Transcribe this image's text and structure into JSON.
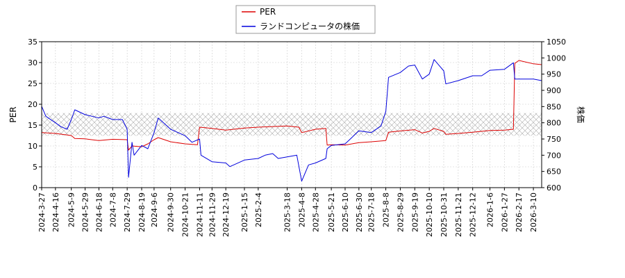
{
  "chart_data": {
    "type": "line",
    "title": "",
    "ylabel_left": "PER",
    "ylabel_right": "株価",
    "ylim_left": [
      0,
      35
    ],
    "ylim_right": [
      600,
      1050
    ],
    "yticks_left": [
      "0",
      "5",
      "10",
      "15",
      "20",
      "25",
      "30",
      "35"
    ],
    "yticks_right": [
      "600",
      "650",
      "700",
      "750",
      "800",
      "850",
      "900",
      "950",
      "1000",
      "1050"
    ],
    "x_range": [
      "2024-3-27",
      "2026-3-22"
    ],
    "xtick_labels": [
      "2024-3-27",
      "2024-4-16",
      "2024-5-9",
      "2024-5-29",
      "2024-6-18",
      "2024-7-8",
      "2024-7-29",
      "2024-8-19",
      "2024-9-6",
      "2024-9-30",
      "2024-10-21",
      "2024-11-11",
      "2024-11-29",
      "2024-12-19",
      "2025-1-15",
      "2025-2-4",
      "2025-3-18",
      "2025-4-8",
      "2025-4-28",
      "2025-5-21",
      "2025-6-10",
      "2025-6-30",
      "2025-7-18",
      "2025-8-8",
      "2025-8-29",
      "2025-9-19",
      "2025-10-10",
      "2025-10-31",
      "2025-11-21",
      "2025-12-12",
      "2026-1-6",
      "2026-1-27",
      "2026-2-17",
      "2026-3-10"
    ],
    "grid": true,
    "legend_position": "top-center",
    "hatched_band_right_axis": [
      760,
      830
    ],
    "series": [
      {
        "name": "PER",
        "axis": "left",
        "color": "#dd0000",
        "points": [
          [
            "2024-3-27",
            13.2
          ],
          [
            "2024-4-16",
            13
          ],
          [
            "2024-5-9",
            12.5
          ],
          [
            "2024-5-14",
            11.8
          ],
          [
            "2024-5-29",
            11.7
          ],
          [
            "2024-6-18",
            11.3
          ],
          [
            "2024-7-8",
            11.6
          ],
          [
            "2024-7-29",
            11.5
          ],
          [
            "2024-7-31",
            9.0
          ],
          [
            "2024-8-5",
            10.0
          ],
          [
            "2024-8-19",
            9.8
          ],
          [
            "2024-8-28",
            10.5
          ],
          [
            "2024-9-6",
            11.5
          ],
          [
            "2024-9-12",
            12
          ],
          [
            "2024-9-30",
            11.0
          ],
          [
            "2024-10-21",
            10.5
          ],
          [
            "2024-11-8",
            10.3
          ],
          [
            "2024-11-11",
            14.5
          ],
          [
            "2024-11-29",
            14.2
          ],
          [
            "2024-12-19",
            13.8
          ],
          [
            "2025-1-15",
            14.3
          ],
          [
            "2025-2-4",
            14.5
          ],
          [
            "2025-3-18",
            14.8
          ],
          [
            "2025-4-4",
            14.5
          ],
          [
            "2025-4-8",
            13.2
          ],
          [
            "2025-4-28",
            14.0
          ],
          [
            "2025-5-13",
            14.2
          ],
          [
            "2025-5-15",
            10.2
          ],
          [
            "2025-5-21",
            10.3
          ],
          [
            "2025-6-10",
            10.2
          ],
          [
            "2025-6-30",
            10.8
          ],
          [
            "2025-7-18",
            11.0
          ],
          [
            "2025-8-8",
            11.3
          ],
          [
            "2025-8-12",
            13.3
          ],
          [
            "2025-8-29",
            13.6
          ],
          [
            "2025-9-19",
            13.9
          ],
          [
            "2025-9-30",
            13.1
          ],
          [
            "2025-10-10",
            13.5
          ],
          [
            "2025-10-17",
            14.2
          ],
          [
            "2025-10-31",
            13.5
          ],
          [
            "2025-11-3",
            12.8
          ],
          [
            "2025-11-21",
            13.0
          ],
          [
            "2025-12-12",
            13.3
          ],
          [
            "2026-1-6",
            13.7
          ],
          [
            "2026-1-27",
            13.8
          ],
          [
            "2026-2-9",
            14.0
          ],
          [
            "2026-2-11",
            29.8
          ],
          [
            "2026-2-17",
            30.5
          ],
          [
            "2026-3-10",
            29.7
          ],
          [
            "2026-3-22",
            29.5
          ]
        ]
      },
      {
        "name": "ランドコンピュータの株価",
        "axis": "right",
        "color": "#0000dd",
        "points": [
          [
            "2024-3-27",
            851
          ],
          [
            "2024-4-2",
            820
          ],
          [
            "2024-4-16",
            800
          ],
          [
            "2024-4-24",
            788
          ],
          [
            "2024-5-3",
            780
          ],
          [
            "2024-5-9",
            810
          ],
          [
            "2024-5-14",
            840
          ],
          [
            "2024-5-29",
            825
          ],
          [
            "2024-6-18",
            815
          ],
          [
            "2024-6-25",
            820
          ],
          [
            "2024-7-8",
            810
          ],
          [
            "2024-7-22",
            810
          ],
          [
            "2024-7-29",
            780
          ],
          [
            "2024-7-31",
            632
          ],
          [
            "2024-8-5",
            740
          ],
          [
            "2024-8-8",
            700
          ],
          [
            "2024-8-19",
            730
          ],
          [
            "2024-8-28",
            720
          ],
          [
            "2024-9-6",
            770
          ],
          [
            "2024-9-12",
            815
          ],
          [
            "2024-9-30",
            780
          ],
          [
            "2024-10-21",
            760
          ],
          [
            "2024-10-31",
            740
          ],
          [
            "2024-11-11",
            750
          ],
          [
            "2024-11-13",
            700
          ],
          [
            "2024-11-29",
            680
          ],
          [
            "2024-12-19",
            676
          ],
          [
            "2024-12-25",
            665
          ],
          [
            "2025-1-15",
            685
          ],
          [
            "2025-2-4",
            690
          ],
          [
            "2025-2-14",
            700
          ],
          [
            "2025-2-25",
            705
          ],
          [
            "2025-3-5",
            690
          ],
          [
            "2025-3-18",
            695
          ],
          [
            "2025-4-1",
            700
          ],
          [
            "2025-4-8",
            620
          ],
          [
            "2025-4-18",
            670
          ],
          [
            "2025-4-28",
            676
          ],
          [
            "2025-5-13",
            690
          ],
          [
            "2025-5-15",
            720
          ],
          [
            "2025-5-21",
            730
          ],
          [
            "2025-6-10",
            735
          ],
          [
            "2025-6-30",
            775
          ],
          [
            "2025-7-18",
            770
          ],
          [
            "2025-8-1",
            790
          ],
          [
            "2025-8-8",
            835
          ],
          [
            "2025-8-12",
            940
          ],
          [
            "2025-8-29",
            955
          ],
          [
            "2025-9-10",
            975
          ],
          [
            "2025-9-19",
            978
          ],
          [
            "2025-9-30",
            935
          ],
          [
            "2025-10-10",
            950
          ],
          [
            "2025-10-17",
            995
          ],
          [
            "2025-10-31",
            960
          ],
          [
            "2025-11-3",
            920
          ],
          [
            "2025-11-21",
            930
          ],
          [
            "2025-12-12",
            945
          ],
          [
            "2025-12-25",
            945
          ],
          [
            "2026-1-6",
            962
          ],
          [
            "2026-1-27",
            965
          ],
          [
            "2026-2-9",
            985
          ],
          [
            "2026-2-11",
            935
          ],
          [
            "2026-2-17",
            935
          ],
          [
            "2026-3-10",
            935
          ],
          [
            "2026-3-22",
            930
          ]
        ]
      }
    ]
  }
}
